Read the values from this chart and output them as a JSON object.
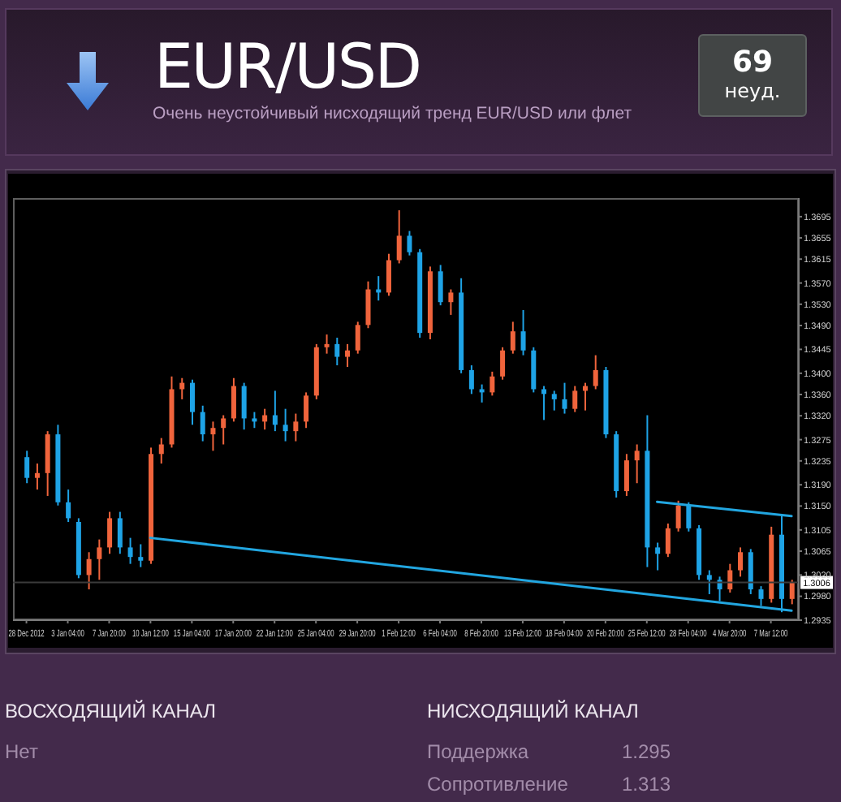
{
  "chart_data": {
    "type": "candlestick",
    "title": "EUR/USD",
    "subtitle": "Очень неустойчивый нисходящий тренд EUR/USD или флет",
    "categories": [
      "28 Dec 2012",
      null,
      null,
      null,
      "3 Jan 04:00",
      null,
      null,
      null,
      "7 Jan 20:00",
      null,
      null,
      null,
      "10 Jan 12:00",
      null,
      null,
      null,
      "15 Jan 04:00",
      null,
      null,
      null,
      "17 Jan 20:00",
      null,
      null,
      null,
      "22 Jan 12:00",
      null,
      null,
      null,
      "25 Jan 04:00",
      null,
      null,
      null,
      "29 Jan 20:00",
      null,
      null,
      null,
      "1 Feb 12:00",
      null,
      null,
      null,
      "6 Feb 04:00",
      null,
      null,
      null,
      "8 Feb 20:00",
      null,
      null,
      null,
      "13 Feb 12:00",
      null,
      null,
      null,
      "18 Feb 04:00",
      null,
      null,
      null,
      "20 Feb 20:00",
      null,
      null,
      null,
      "25 Feb 12:00",
      null,
      null,
      null,
      "28 Feb 04:00",
      null,
      null,
      null,
      "4 Mar 20:00",
      null,
      null,
      null,
      "7 Mar 12:00",
      null,
      null
    ],
    "ohlc": [
      [
        1.3242,
        1.3254,
        1.3193,
        1.3203
      ],
      [
        1.3203,
        1.323,
        1.3181,
        1.3212
      ],
      [
        1.3212,
        1.3291,
        1.3169,
        1.3285
      ],
      [
        1.3285,
        1.3303,
        1.3151,
        1.3157
      ],
      [
        1.3157,
        1.3181,
        1.312,
        1.3127
      ],
      [
        1.312,
        1.3127,
        1.3014,
        1.302
      ],
      [
        1.302,
        1.3063,
        1.2993,
        1.305
      ],
      [
        1.305,
        1.3087,
        1.3011,
        1.3072
      ],
      [
        1.3072,
        1.3139,
        1.306,
        1.3127
      ],
      [
        1.3127,
        1.3139,
        1.306,
        1.3072
      ],
      [
        1.3072,
        1.309,
        1.3041,
        1.3054
      ],
      [
        1.3054,
        1.3078,
        1.3035,
        1.3047
      ],
      [
        1.3047,
        1.326,
        1.3041,
        1.3248
      ],
      [
        1.3248,
        1.3278,
        1.323,
        1.3266
      ],
      [
        1.3266,
        1.3394,
        1.326,
        1.337
      ],
      [
        1.337,
        1.3391,
        1.3351,
        1.3382
      ],
      [
        1.3382,
        1.3388,
        1.3303,
        1.3327
      ],
      [
        1.3327,
        1.3339,
        1.3272,
        1.3285
      ],
      [
        1.3285,
        1.3309,
        1.3254,
        1.3297
      ],
      [
        1.3297,
        1.3321,
        1.3266,
        1.3315
      ],
      [
        1.3315,
        1.3391,
        1.3309,
        1.3376
      ],
      [
        1.3376,
        1.3382,
        1.3294,
        1.3315
      ],
      [
        1.3315,
        1.3327,
        1.3297,
        1.3309
      ],
      [
        1.3309,
        1.3333,
        1.3294,
        1.3321
      ],
      [
        1.3321,
        1.3367,
        1.3291,
        1.3303
      ],
      [
        1.3303,
        1.3333,
        1.3272,
        1.3291
      ],
      [
        1.3291,
        1.3324,
        1.3272,
        1.3309
      ],
      [
        1.3309,
        1.3364,
        1.3297,
        1.3358
      ],
      [
        1.3358,
        1.3455,
        1.3351,
        1.3449
      ],
      [
        1.3449,
        1.3473,
        1.3437,
        1.3455
      ],
      [
        1.3455,
        1.3467,
        1.3415,
        1.3431
      ],
      [
        1.3431,
        1.3455,
        1.3412,
        1.3443
      ],
      [
        1.3443,
        1.3497,
        1.3437,
        1.3491
      ],
      [
        1.3491,
        1.3573,
        1.3485,
        1.3558
      ],
      [
        1.3558,
        1.3583,
        1.3537,
        1.3552
      ],
      [
        1.3552,
        1.3625,
        1.3546,
        1.3613
      ],
      [
        1.3613,
        1.3707,
        1.3607,
        1.3659
      ],
      [
        1.3659,
        1.3668,
        1.3622,
        1.3628
      ],
      [
        1.3628,
        1.3634,
        1.3467,
        1.3476
      ],
      [
        1.3476,
        1.3601,
        1.3464,
        1.3592
      ],
      [
        1.3592,
        1.3604,
        1.3528,
        1.3534
      ],
      [
        1.3534,
        1.3558,
        1.351,
        1.3552
      ],
      [
        1.3552,
        1.3579,
        1.34,
        1.3406
      ],
      [
        1.3406,
        1.3415,
        1.3361,
        1.337
      ],
      [
        1.337,
        1.3379,
        1.3345,
        1.3364
      ],
      [
        1.3364,
        1.3403,
        1.3358,
        1.3394
      ],
      [
        1.3394,
        1.3449,
        1.3388,
        1.3443
      ],
      [
        1.3443,
        1.3497,
        1.3437,
        1.3479
      ],
      [
        1.3479,
        1.3519,
        1.3434,
        1.3443
      ],
      [
        1.3443,
        1.3449,
        1.3364,
        1.337
      ],
      [
        1.337,
        1.3376,
        1.3312,
        1.3361
      ],
      [
        1.3361,
        1.3367,
        1.333,
        1.3351
      ],
      [
        1.3351,
        1.3382,
        1.3324,
        1.3333
      ],
      [
        1.3333,
        1.3376,
        1.3327,
        1.3367
      ],
      [
        1.3367,
        1.3382,
        1.333,
        1.3376
      ],
      [
        1.3376,
        1.3434,
        1.337,
        1.3406
      ],
      [
        1.3406,
        1.3412,
        1.3278,
        1.3285
      ],
      [
        1.3285,
        1.3291,
        1.3166,
        1.3178
      ],
      [
        1.3178,
        1.3248,
        1.3169,
        1.3236
      ],
      [
        1.3236,
        1.3266,
        1.3193,
        1.3254
      ],
      [
        1.3254,
        1.3321,
        1.3035,
        1.3072
      ],
      [
        1.3072,
        1.3081,
        1.3029,
        1.306
      ],
      [
        1.306,
        1.3117,
        1.3054,
        1.3108
      ],
      [
        1.3108,
        1.316,
        1.3102,
        1.3151
      ],
      [
        1.3151,
        1.3157,
        1.3102,
        1.3108
      ],
      [
        1.3108,
        1.3114,
        1.3011,
        1.302
      ],
      [
        1.302,
        1.3029,
        1.2984,
        1.3011
      ],
      [
        1.3011,
        1.3017,
        1.2971,
        1.2993
      ],
      [
        1.2993,
        1.3041,
        1.2987,
        1.3029
      ],
      [
        1.3029,
        1.3072,
        1.3017,
        1.3063
      ],
      [
        1.3063,
        1.3069,
        1.2984,
        1.2993
      ],
      [
        1.2993,
        1.2999,
        1.2962,
        1.2975
      ],
      [
        1.2975,
        1.3111,
        1.2968,
        1.3096
      ],
      [
        1.3096,
        1.3133,
        1.295,
        1.2975
      ],
      [
        1.2975,
        1.3011,
        1.2965,
        1.3006
      ]
    ],
    "colors": [
      "#1ea3e6",
      "#f0643c",
      "#f0643c",
      "#1ea3e6",
      "#1ea3e6",
      "#1ea3e6",
      "#f0643c",
      "#f0643c",
      "#f0643c",
      "#1ea3e6",
      "#1ea3e6",
      "#1ea3e6",
      "#f0643c",
      "#f0643c",
      "#f0643c",
      "#f0643c",
      "#1ea3e6",
      "#1ea3e6",
      "#f0643c",
      "#f0643c",
      "#f0643c",
      "#1ea3e6",
      "#1ea3e6",
      "#f0643c",
      "#1ea3e6",
      "#1ea3e6",
      "#f0643c",
      "#f0643c",
      "#f0643c",
      "#f0643c",
      "#1ea3e6",
      "#f0643c",
      "#f0643c",
      "#f0643c",
      "#1ea3e6",
      "#f0643c",
      "#f0643c",
      "#1ea3e6",
      "#1ea3e6",
      "#f0643c",
      "#1ea3e6",
      "#f0643c",
      "#1ea3e6",
      "#1ea3e6",
      "#1ea3e6",
      "#f0643c",
      "#f0643c",
      "#f0643c",
      "#1ea3e6",
      "#1ea3e6",
      "#1ea3e6",
      "#1ea3e6",
      "#1ea3e6",
      "#f0643c",
      "#f0643c",
      "#f0643c",
      "#1ea3e6",
      "#1ea3e6",
      "#f0643c",
      "#f0643c",
      "#1ea3e6",
      "#1ea3e6",
      "#f0643c",
      "#f0643c",
      "#1ea3e6",
      "#1ea3e6",
      "#1ea3e6",
      "#1ea3e6",
      "#f0643c",
      "#f0643c",
      "#1ea3e6",
      "#1ea3e6",
      "#f0643c",
      "#1ea3e6",
      "#f0643c"
    ],
    "series": [
      {
        "type": "line",
        "color": "#22a6e0",
        "values": [
          null,
          null,
          null,
          null,
          null,
          null,
          null,
          null,
          null,
          null,
          null,
          null,
          1.309,
          null,
          null,
          null,
          null,
          null,
          null,
          null,
          null,
          null,
          null,
          null,
          null,
          null,
          null,
          null,
          null,
          null,
          null,
          null,
          null,
          null,
          null,
          null,
          null,
          null,
          null,
          null,
          null,
          null,
          null,
          null,
          null,
          null,
          null,
          null,
          null,
          null,
          null,
          null,
          null,
          null,
          null,
          null,
          null,
          null,
          null,
          null,
          null,
          null,
          null,
          null,
          null,
          null,
          null,
          null,
          null,
          null,
          null,
          null,
          null,
          null,
          1.2953
        ]
      },
      {
        "type": "line",
        "color": "#22a6e0",
        "values": [
          null,
          null,
          null,
          null,
          null,
          null,
          null,
          null,
          null,
          null,
          null,
          null,
          null,
          null,
          null,
          null,
          null,
          null,
          null,
          null,
          null,
          null,
          null,
          null,
          null,
          null,
          null,
          null,
          null,
          null,
          null,
          null,
          null,
          null,
          null,
          null,
          null,
          null,
          null,
          null,
          null,
          null,
          null,
          null,
          null,
          null,
          null,
          null,
          null,
          null,
          null,
          null,
          null,
          null,
          null,
          null,
          null,
          null,
          null,
          null,
          null,
          1.3158,
          null,
          null,
          null,
          null,
          null,
          null,
          null,
          null,
          null,
          null,
          null,
          null,
          1.3131
        ]
      }
    ],
    "ylim": [
      1.2935,
      1.373
    ],
    "yticks": [
      1.2935,
      {
        "value": 1.298,
        "label": "1.2980"
      },
      {
        "value": 1.302,
        "label": "1.3020"
      },
      1.3065,
      1.3105,
      {
        "value": 1.315,
        "label": "1.3150"
      },
      {
        "value": 1.319,
        "label": "1.3190"
      },
      1.3235,
      1.3275,
      {
        "value": 1.332,
        "label": "1.3320"
      },
      {
        "value": 1.336,
        "label": "1.3360"
      },
      {
        "value": 1.34,
        "label": "1.3400"
      },
      1.3445,
      {
        "value": 1.349,
        "label": "1.3490"
      },
      {
        "value": 1.353,
        "label": "1.3530"
      },
      {
        "value": 1.357,
        "label": "1.3570"
      },
      1.3615,
      1.3655,
      1.3695
    ],
    "ref_lines": [
      {
        "axis": "y",
        "value": 1.3006,
        "label": "1.3006",
        "color": "#3a3a3a"
      }
    ],
    "annotations": [
      "69",
      "неуд.",
      "ВОСХОДЯЩИЙ КАНАЛ",
      "Нет",
      "НИСХОДЯЩИЙ КАНАЛ",
      "Поддержка",
      "1.295",
      "Сопротивление",
      "1.313"
    ]
  }
}
